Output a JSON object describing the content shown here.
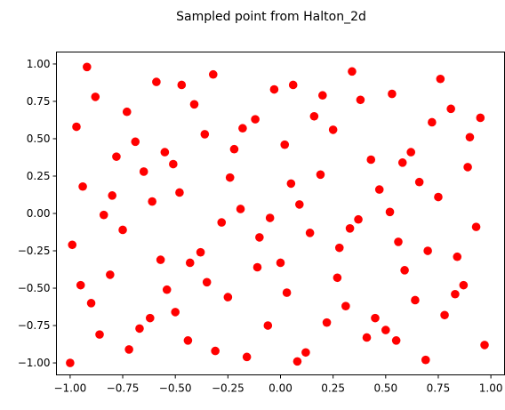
{
  "chart_data": {
    "type": "scatter",
    "title": "Sampled point from Halton_2d",
    "xlabel": "",
    "ylabel": "",
    "xlim": [
      -1.065,
      1.065
    ],
    "ylim": [
      -1.08,
      1.08
    ],
    "xticks": [
      -1.0,
      -0.75,
      -0.5,
      -0.25,
      0.0,
      0.25,
      0.5,
      0.75,
      1.0
    ],
    "xtick_labels": [
      "−1.00",
      "−0.75",
      "−0.50",
      "−0.25",
      "0.00",
      "0.25",
      "0.50",
      "0.75",
      "1.00"
    ],
    "yticks": [
      -1.0,
      -0.75,
      -0.5,
      -0.25,
      0.0,
      0.25,
      0.5,
      0.75,
      1.0
    ],
    "ytick_labels": [
      "−1.00",
      "−0.75",
      "−0.50",
      "−0.25",
      "0.00",
      "0.25",
      "0.50",
      "0.75",
      "1.00"
    ],
    "grid": false,
    "marker_color": "#ff0000",
    "series": [
      {
        "points": [
          [
            -1.0,
            -1.0
          ],
          [
            -0.99,
            -0.21
          ],
          [
            -0.97,
            0.58
          ],
          [
            -0.95,
            -0.48
          ],
          [
            -0.94,
            0.18
          ],
          [
            -0.92,
            0.98
          ],
          [
            -0.9,
            -0.6
          ],
          [
            -0.88,
            0.78
          ],
          [
            -0.86,
            -0.81
          ],
          [
            -0.84,
            -0.01
          ],
          [
            -0.81,
            -0.41
          ],
          [
            -0.8,
            0.12
          ],
          [
            -0.78,
            0.38
          ],
          [
            -0.75,
            -0.11
          ],
          [
            -0.73,
            0.68
          ],
          [
            -0.72,
            -0.91
          ],
          [
            -0.69,
            0.48
          ],
          [
            -0.67,
            -0.77
          ],
          [
            -0.65,
            0.28
          ],
          [
            -0.62,
            -0.7
          ],
          [
            -0.61,
            0.08
          ],
          [
            -0.59,
            0.88
          ],
          [
            -0.57,
            -0.31
          ],
          [
            -0.55,
            0.41
          ],
          [
            -0.54,
            -0.51
          ],
          [
            -0.51,
            0.33
          ],
          [
            -0.5,
            -0.66
          ],
          [
            -0.48,
            0.14
          ],
          [
            -0.47,
            0.86
          ],
          [
            -0.44,
            -0.85
          ],
          [
            -0.43,
            -0.33
          ],
          [
            -0.41,
            0.73
          ],
          [
            -0.38,
            -0.26
          ],
          [
            -0.36,
            0.53
          ],
          [
            -0.35,
            -0.46
          ],
          [
            -0.32,
            0.93
          ],
          [
            -0.31,
            -0.92
          ],
          [
            -0.28,
            -0.06
          ],
          [
            -0.25,
            -0.56
          ],
          [
            -0.24,
            0.24
          ],
          [
            -0.22,
            0.43
          ],
          [
            -0.19,
            0.03
          ],
          [
            -0.18,
            0.57
          ],
          [
            -0.16,
            -0.96
          ],
          [
            -0.12,
            0.63
          ],
          [
            -0.11,
            -0.36
          ],
          [
            -0.1,
            -0.16
          ],
          [
            -0.06,
            -0.75
          ],
          [
            -0.05,
            -0.03
          ],
          [
            -0.03,
            0.83
          ],
          [
            0.0,
            -0.33
          ],
          [
            0.02,
            0.46
          ],
          [
            0.03,
            -0.53
          ],
          [
            0.05,
            0.2
          ],
          [
            0.06,
            0.86
          ],
          [
            0.08,
            -0.99
          ],
          [
            0.09,
            0.06
          ],
          [
            0.12,
            -0.93
          ],
          [
            0.14,
            -0.13
          ],
          [
            0.16,
            0.65
          ],
          [
            0.19,
            0.26
          ],
          [
            0.2,
            0.79
          ],
          [
            0.22,
            -0.73
          ],
          [
            0.25,
            0.56
          ],
          [
            0.27,
            -0.43
          ],
          [
            0.28,
            -0.23
          ],
          [
            0.31,
            -0.62
          ],
          [
            0.33,
            -0.1
          ],
          [
            0.34,
            0.95
          ],
          [
            0.37,
            -0.04
          ],
          [
            0.38,
            0.76
          ],
          [
            0.41,
            -0.83
          ],
          [
            0.43,
            0.36
          ],
          [
            0.45,
            -0.7
          ],
          [
            0.47,
            0.16
          ],
          [
            0.5,
            -0.78
          ],
          [
            0.52,
            0.01
          ],
          [
            0.53,
            0.8
          ],
          [
            0.55,
            -0.85
          ],
          [
            0.56,
            -0.19
          ],
          [
            0.58,
            0.34
          ],
          [
            0.59,
            -0.38
          ],
          [
            0.62,
            0.41
          ],
          [
            0.64,
            -0.58
          ],
          [
            0.66,
            0.21
          ],
          [
            0.69,
            -0.98
          ],
          [
            0.7,
            -0.25
          ],
          [
            0.72,
            0.61
          ],
          [
            0.75,
            0.11
          ],
          [
            0.76,
            0.9
          ],
          [
            0.78,
            -0.68
          ],
          [
            0.81,
            0.7
          ],
          [
            0.83,
            -0.54
          ],
          [
            0.84,
            -0.29
          ],
          [
            0.87,
            -0.48
          ],
          [
            0.89,
            0.31
          ],
          [
            0.9,
            0.51
          ],
          [
            0.93,
            -0.09
          ],
          [
            0.95,
            0.64
          ],
          [
            0.97,
            -0.88
          ]
        ]
      }
    ]
  }
}
